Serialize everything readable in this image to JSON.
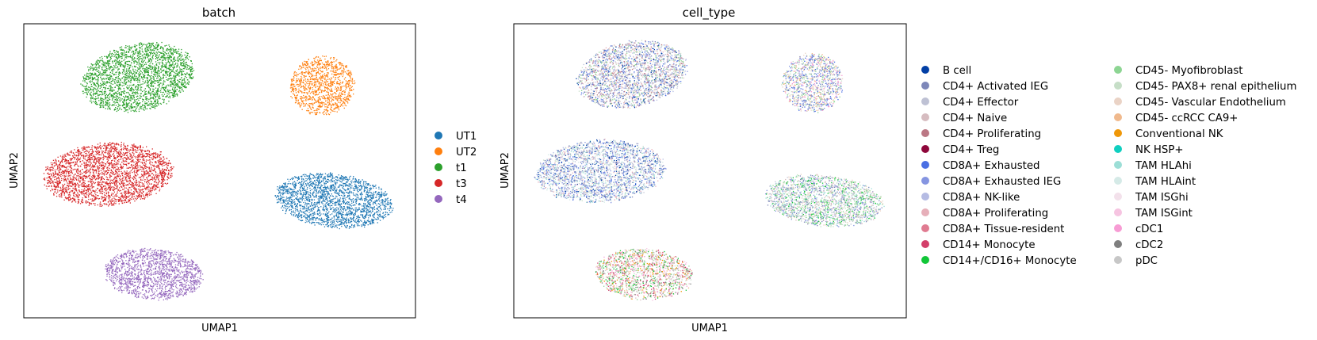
{
  "chart_data": [
    {
      "type": "scatter",
      "title": "batch",
      "xlabel": "UMAP1",
      "ylabel": "UMAP2",
      "ticks": false,
      "grid": false,
      "legend_placement": "right-outside",
      "legend": [
        {
          "name": "UT1",
          "color": "#1f77b4"
        },
        {
          "name": "UT2",
          "color": "#ff7f0e"
        },
        {
          "name": "t1",
          "color": "#2ca02c"
        },
        {
          "name": "t3",
          "color": "#d62728"
        },
        {
          "name": "t4",
          "color": "#9467bd"
        }
      ],
      "clusters": [
        {
          "batch": "t1",
          "cx": 0.29,
          "cy": 0.82,
          "rx": 0.15,
          "ry": 0.118,
          "tilt": -12,
          "n": 2400
        },
        {
          "batch": "UT2",
          "cx": 0.76,
          "cy": 0.79,
          "rx": 0.085,
          "ry": 0.105,
          "tilt": -8,
          "n": 1100
        },
        {
          "batch": "t3",
          "cx": 0.215,
          "cy": 0.49,
          "rx": 0.17,
          "ry": 0.11,
          "tilt": -4,
          "n": 2600
        },
        {
          "batch": "UT1",
          "cx": 0.79,
          "cy": 0.4,
          "rx": 0.155,
          "ry": 0.095,
          "tilt": 6,
          "n": 2100
        },
        {
          "batch": "t4",
          "cx": 0.33,
          "cy": 0.15,
          "rx": 0.13,
          "ry": 0.09,
          "tilt": 4,
          "n": 1500
        }
      ]
    },
    {
      "type": "scatter",
      "title": "cell_type",
      "xlabel": "UMAP1",
      "ylabel": "UMAP2",
      "ticks": false,
      "grid": false,
      "legend_placement": "right-outside",
      "legend_columns": 2,
      "legend": [
        {
          "name": "B cell",
          "color": "#023fa5"
        },
        {
          "name": "CD4+ Activated IEG",
          "color": "#7d87b9"
        },
        {
          "name": "CD4+ Effector",
          "color": "#bec1d4"
        },
        {
          "name": "CD4+ Naive",
          "color": "#d6bcc0"
        },
        {
          "name": "CD4+ Proliferating",
          "color": "#bb7784"
        },
        {
          "name": "CD4+ Treg",
          "color": "#8e063b"
        },
        {
          "name": "CD8A+ Exhausted",
          "color": "#4a6fe3"
        },
        {
          "name": "CD8A+ Exhausted IEG",
          "color": "#8595e1"
        },
        {
          "name": "CD8A+ NK-like",
          "color": "#b5bbe3"
        },
        {
          "name": "CD8A+ Proliferating",
          "color": "#e6afb9"
        },
        {
          "name": "CD8A+ Tissue-resident",
          "color": "#e07b91"
        },
        {
          "name": "CD14+ Monocyte",
          "color": "#d33f6a"
        },
        {
          "name": "CD14+/CD16+ Monocyte",
          "color": "#11c638"
        },
        {
          "name": "CD45- Myofibroblast",
          "color": "#8dd593"
        },
        {
          "name": "CD45- PAX8+ renal epithelium",
          "color": "#c6dec7"
        },
        {
          "name": "CD45- Vascular Endothelium",
          "color": "#ead3c6"
        },
        {
          "name": "CD45- ccRCC CA9+",
          "color": "#f0b98d"
        },
        {
          "name": "Conventional NK",
          "color": "#ef9708"
        },
        {
          "name": "NK HSP+",
          "color": "#0fcfc0"
        },
        {
          "name": "TAM HLAhi",
          "color": "#9cded6"
        },
        {
          "name": "TAM HLAint",
          "color": "#d5eae7"
        },
        {
          "name": "TAM ISGhi",
          "color": "#f3e1eb"
        },
        {
          "name": "TAM ISGint",
          "color": "#f6c4e1"
        },
        {
          "name": "cDC1",
          "color": "#f79cd4"
        },
        {
          "name": "cDC2",
          "color": "#7f7f7f"
        },
        {
          "name": "pDC",
          "color": "#c7c7c7"
        }
      ],
      "clusters": [
        {
          "cx": 0.3,
          "cy": 0.83,
          "rx": 0.145,
          "ry": 0.115,
          "tilt": -12,
          "n": 2400,
          "mix": [
            "#7d87b9",
            "#bec1d4",
            "#d6bcc0",
            "#b5bbe3",
            "#8595e1",
            "#c6dec7",
            "#bb7784",
            "#4a6fe3",
            "#8dd593",
            "#ead3c6",
            "#023fa5",
            "#e6afb9"
          ]
        },
        {
          "cx": 0.76,
          "cy": 0.8,
          "rx": 0.08,
          "ry": 0.105,
          "tilt": -8,
          "n": 1100,
          "mix": [
            "#f0b98d",
            "#ead3c6",
            "#c6dec7",
            "#8dd593",
            "#8595e1",
            "#4a6fe3",
            "#7d87b9",
            "#f79cd4"
          ]
        },
        {
          "cx": 0.22,
          "cy": 0.5,
          "rx": 0.17,
          "ry": 0.11,
          "tilt": -4,
          "n": 2600,
          "mix": [
            "#4a6fe3",
            "#8595e1",
            "#b5bbe3",
            "#7d87b9",
            "#bec1d4",
            "#9cded6",
            "#d5eae7",
            "#e6afb9",
            "#023fa5",
            "#c6dec7"
          ]
        },
        {
          "cx": 0.79,
          "cy": 0.4,
          "rx": 0.155,
          "ry": 0.09,
          "tilt": 6,
          "n": 2100,
          "mix": [
            "#bec1d4",
            "#c6dec7",
            "#8dd593",
            "#7d87b9",
            "#9cded6",
            "#ead3c6",
            "#d6bcc0",
            "#8595e1",
            "#11c638"
          ]
        },
        {
          "cx": 0.33,
          "cy": 0.15,
          "rx": 0.128,
          "ry": 0.09,
          "tilt": 4,
          "n": 1500,
          "mix": [
            "#ef9708",
            "#f0b98d",
            "#c6dec7",
            "#11c638",
            "#d33f6a",
            "#7f7f7f",
            "#f79cd4",
            "#8dd593",
            "#d6bcc0",
            "#f6c4e1"
          ]
        }
      ]
    }
  ]
}
